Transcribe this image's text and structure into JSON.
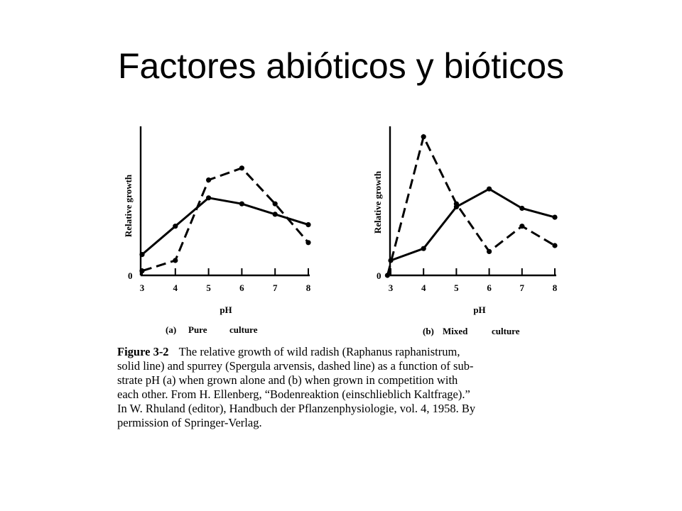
{
  "slide": {
    "title": "Factores abióticos y bióticos"
  },
  "chart_data": [
    {
      "type": "line",
      "panel_label": "(a)",
      "caption_words": [
        "Pure",
        "culture"
      ],
      "xlabel": "pH",
      "ylabel": "Relative growth",
      "y_zero_label": "0",
      "x_ticks": [
        3,
        4,
        5,
        6,
        7,
        8
      ],
      "xlim": [
        3,
        8
      ],
      "ylim": [
        0,
        10
      ],
      "grid": false,
      "series": [
        {
          "style": "solid",
          "x": [
            3,
            4,
            5,
            6,
            7,
            8
          ],
          "y": [
            1.4,
            3.3,
            5.2,
            4.8,
            4.1,
            3.4
          ]
        },
        {
          "style": "dashed",
          "x": [
            3,
            4,
            5,
            6,
            7,
            8
          ],
          "y": [
            0.3,
            1.0,
            6.4,
            7.2,
            4.8,
            2.2
          ]
        }
      ]
    },
    {
      "type": "line",
      "panel_label": "(b)",
      "caption_words": [
        "Mixed",
        "culture"
      ],
      "xlabel": "pH",
      "ylabel": "Relative growth",
      "y_zero_label": "0",
      "x_ticks": [
        3,
        4,
        5,
        6,
        7,
        8
      ],
      "xlim": [
        3,
        8
      ],
      "ylim": [
        0,
        10
      ],
      "grid": false,
      "series": [
        {
          "style": "solid",
          "x": [
            3,
            4,
            5,
            6,
            7,
            8
          ],
          "y": [
            1.0,
            1.8,
            4.6,
            5.8,
            4.5,
            3.9
          ]
        },
        {
          "style": "dashed",
          "x": [
            2.9,
            4,
            5,
            6,
            7,
            8
          ],
          "y": [
            0,
            9.3,
            4.8,
            1.6,
            3.3,
            2.0
          ]
        }
      ]
    }
  ],
  "caption": {
    "label": "Figure 3-2",
    "lines": [
      "The relative growth of wild radish (Raphanus raphanistrum,",
      "solid line) and spurrey (Spergula arvensis, dashed line) as a function of sub-",
      "strate pH (a) when grown alone and (b) when grown in competition with",
      "each other. From H. Ellenberg, “Bodenreaktion (einschlieblich Kaltfrage).”",
      "In W. Rhuland (editor), Handbuch der Pflanzenphysiologie, vol. 4, 1958. By",
      "permission of Springer-Verlag."
    ]
  }
}
